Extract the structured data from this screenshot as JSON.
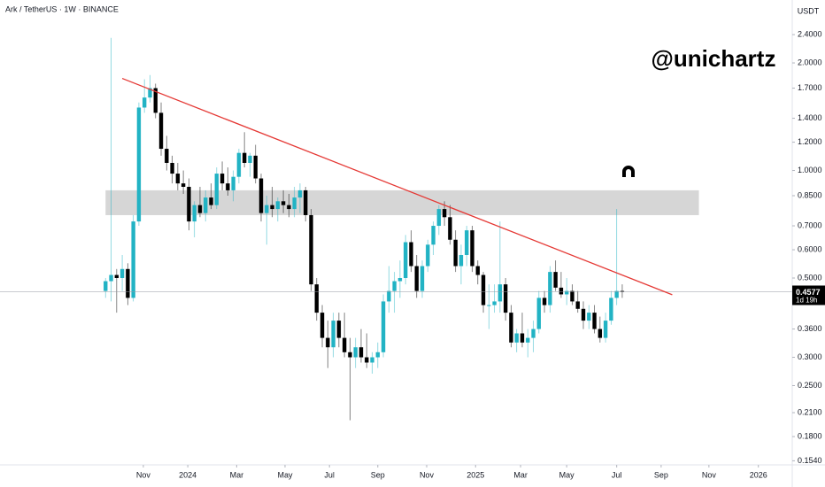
{
  "chart_data": {
    "type": "candlestick",
    "title": "Ark / TetherUS · 1W · BINANCE",
    "currency": "USDT",
    "watermark": "@unichartz",
    "countdown": "1d 19h",
    "up_color": "#22b3c4",
    "down_color": "#000000",
    "log_scale": true,
    "grid": false,
    "open": [
      0.46,
      0.49,
      0.51,
      0.5,
      0.53,
      0.44,
      0.72,
      1.5,
      1.6,
      1.7,
      1.45,
      1.15,
      1.05,
      0.98,
      0.92,
      0.9,
      0.72,
      0.8,
      0.76,
      0.84,
      0.8,
      0.98,
      0.92,
      0.88,
      0.96,
      1.12,
      1.05,
      1.1,
      0.95,
      0.76,
      0.8,
      0.78,
      0.82,
      0.8,
      0.78,
      0.84,
      0.88,
      0.75,
      0.48,
      0.4,
      0.34,
      0.32,
      0.38,
      0.34,
      0.31,
      0.3,
      0.32,
      0.3,
      0.29,
      0.3,
      0.31,
      0.43,
      0.46,
      0.49,
      0.5,
      0.63,
      0.54,
      0.46,
      0.54,
      0.62,
      0.7,
      0.78,
      0.74,
      0.64,
      0.54,
      0.58,
      0.68,
      0.54,
      0.51,
      0.42,
      0.42,
      0.43,
      0.48,
      0.4,
      0.33,
      0.35,
      0.33,
      0.34,
      0.36,
      0.44,
      0.42,
      0.52,
      0.47,
      0.45,
      0.46,
      0.43,
      0.41,
      0.38,
      0.4,
      0.36,
      0.34,
      0.38,
      0.44,
      0.46
    ],
    "high": [
      0.5,
      2.35,
      0.53,
      0.58,
      0.55,
      0.75,
      1.55,
      1.8,
      1.85,
      1.75,
      1.55,
      1.25,
      1.1,
      1.05,
      1.0,
      0.95,
      0.82,
      0.9,
      0.88,
      0.92,
      1.02,
      1.06,
      1.02,
      1.0,
      1.15,
      1.28,
      1.12,
      1.18,
      0.98,
      0.85,
      0.9,
      0.84,
      0.88,
      0.86,
      0.9,
      0.92,
      0.9,
      0.78,
      0.5,
      0.42,
      0.38,
      0.4,
      0.4,
      0.4,
      0.34,
      0.34,
      0.36,
      0.35,
      0.31,
      0.33,
      0.45,
      0.54,
      0.52,
      0.56,
      0.66,
      0.68,
      0.58,
      0.56,
      0.64,
      0.72,
      0.8,
      0.82,
      0.8,
      0.68,
      0.62,
      0.7,
      0.7,
      0.56,
      0.52,
      0.48,
      0.48,
      0.72,
      0.5,
      0.42,
      0.36,
      0.4,
      0.36,
      0.38,
      0.46,
      0.46,
      0.54,
      0.56,
      0.52,
      0.5,
      0.48,
      0.46,
      0.43,
      0.42,
      0.42,
      0.39,
      0.4,
      0.46,
      0.78,
      0.48
    ],
    "low": [
      0.44,
      0.43,
      0.4,
      0.46,
      0.42,
      0.43,
      0.7,
      1.45,
      1.55,
      1.4,
      1.1,
      1.0,
      0.92,
      0.88,
      0.86,
      0.68,
      0.65,
      0.74,
      0.72,
      0.78,
      0.78,
      0.88,
      0.85,
      0.82,
      0.92,
      1.02,
      0.96,
      0.92,
      0.72,
      0.62,
      0.74,
      0.72,
      0.76,
      0.74,
      0.74,
      0.76,
      0.72,
      0.46,
      0.38,
      0.32,
      0.28,
      0.3,
      0.32,
      0.3,
      0.2,
      0.28,
      0.29,
      0.28,
      0.27,
      0.28,
      0.3,
      0.4,
      0.4,
      0.44,
      0.48,
      0.52,
      0.44,
      0.44,
      0.52,
      0.58,
      0.66,
      0.7,
      0.62,
      0.52,
      0.48,
      0.54,
      0.52,
      0.48,
      0.4,
      0.36,
      0.4,
      0.4,
      0.38,
      0.32,
      0.31,
      0.32,
      0.3,
      0.31,
      0.35,
      0.4,
      0.4,
      0.46,
      0.44,
      0.42,
      0.42,
      0.4,
      0.36,
      0.36,
      0.35,
      0.33,
      0.33,
      0.37,
      0.42,
      0.44
    ],
    "close": [
      0.49,
      0.51,
      0.5,
      0.53,
      0.44,
      0.72,
      1.5,
      1.6,
      1.7,
      1.45,
      1.15,
      1.05,
      0.98,
      0.92,
      0.9,
      0.72,
      0.8,
      0.76,
      0.84,
      0.8,
      0.98,
      0.92,
      0.88,
      0.96,
      1.12,
      1.05,
      1.1,
      0.95,
      0.76,
      0.8,
      0.78,
      0.82,
      0.8,
      0.78,
      0.84,
      0.88,
      0.75,
      0.48,
      0.4,
      0.34,
      0.32,
      0.38,
      0.34,
      0.31,
      0.3,
      0.32,
      0.3,
      0.29,
      0.3,
      0.31,
      0.43,
      0.46,
      0.49,
      0.5,
      0.63,
      0.54,
      0.46,
      0.54,
      0.62,
      0.7,
      0.78,
      0.74,
      0.64,
      0.54,
      0.58,
      0.68,
      0.54,
      0.51,
      0.42,
      0.42,
      0.43,
      0.48,
      0.4,
      0.33,
      0.35,
      0.33,
      0.34,
      0.36,
      0.44,
      0.42,
      0.52,
      0.47,
      0.45,
      0.46,
      0.43,
      0.41,
      0.38,
      0.4,
      0.36,
      0.34,
      0.38,
      0.44,
      0.46,
      0.4577
    ],
    "xlim": [
      -19,
      123.6
    ],
    "xticks": [
      {
        "value": 6.8,
        "label": "Nov"
      },
      {
        "value": 14.8,
        "label": "2024"
      },
      {
        "value": 23.6,
        "label": "Mar"
      },
      {
        "value": 32.3,
        "label": "May"
      },
      {
        "value": 40.3,
        "label": "Jul"
      },
      {
        "value": 49.0,
        "label": "Sep"
      },
      {
        "value": 57.8,
        "label": "Nov"
      },
      {
        "value": 66.6,
        "label": "2025"
      },
      {
        "value": 74.7,
        "label": "Mar"
      },
      {
        "value": 83.0,
        "label": "May"
      },
      {
        "value": 92.0,
        "label": "Jul"
      },
      {
        "value": 100.0,
        "label": "Sep"
      },
      {
        "value": 108.6,
        "label": "Nov"
      },
      {
        "value": 117.5,
        "label": "2026"
      }
    ],
    "ylim": [
      0.15,
      3.0
    ],
    "yticks": [
      {
        "value": 2.4,
        "label": "2.4000"
      },
      {
        "value": 2.0,
        "label": "2.0000"
      },
      {
        "value": 1.7,
        "label": "1.7000"
      },
      {
        "value": 1.4,
        "label": "1.4000"
      },
      {
        "value": 1.2,
        "label": "1.2000"
      },
      {
        "value": 1.0,
        "label": "1.0000"
      },
      {
        "value": 0.85,
        "label": "0.8500"
      },
      {
        "value": 0.7,
        "label": "0.7000"
      },
      {
        "value": 0.6,
        "label": "0.6000"
      },
      {
        "value": 0.5,
        "label": "0.5000"
      },
      {
        "value": 0.36,
        "label": "0.3600"
      },
      {
        "value": 0.3,
        "label": "0.3000"
      },
      {
        "value": 0.25,
        "label": "0.2500"
      },
      {
        "value": 0.21,
        "label": "0.2100"
      },
      {
        "value": 0.18,
        "label": "0.1800"
      },
      {
        "value": 0.154,
        "label": "0.1540"
      }
    ],
    "zone": {
      "x": [
        0,
        106.8
      ],
      "y": [
        0.75,
        0.88
      ],
      "color": "#d6d6d6"
    },
    "trendline": {
      "x": [
        3,
        102
      ],
      "y": [
        1.81,
        0.449
      ],
      "color": "#e53935"
    }
  }
}
